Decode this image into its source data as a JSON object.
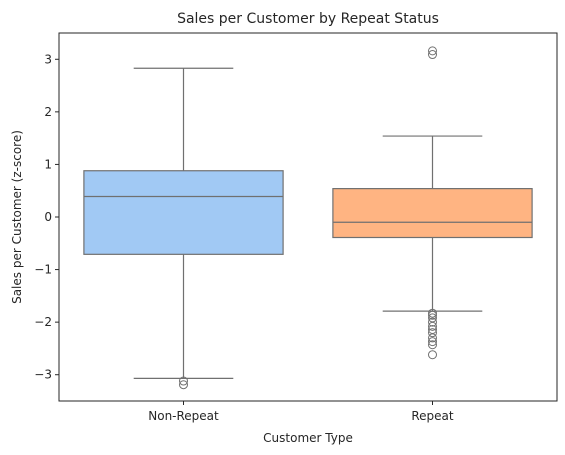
{
  "chart_data": {
    "type": "box",
    "title": "Sales per Customer by Repeat Status",
    "xlabel": "Customer Type",
    "ylabel": "Sales per Customer (z-score)",
    "ylim": [
      -3.5,
      3.5
    ],
    "yticks": [
      -3,
      -2,
      -1,
      0,
      1,
      2,
      3
    ],
    "grid": false,
    "categories": [
      "Non-Repeat",
      "Repeat"
    ],
    "boxes": [
      {
        "name": "Non-Repeat",
        "color": "#a1c9f4",
        "whisker_low": -3.07,
        "q1": -0.71,
        "median": 0.39,
        "q3": 0.88,
        "whisker_high": 2.83,
        "outliers": [
          -3.12,
          -3.19
        ]
      },
      {
        "name": "Repeat",
        "color": "#ffb482",
        "whisker_low": -1.79,
        "q1": -0.39,
        "median": -0.1,
        "q3": 0.54,
        "whisker_high": 1.54,
        "outliers": [
          3.16,
          3.09,
          -1.83,
          -1.87,
          -1.92,
          -2.0,
          -2.08,
          -2.14,
          -2.2,
          -2.3,
          -2.37,
          -2.43,
          -2.62
        ]
      }
    ]
  }
}
